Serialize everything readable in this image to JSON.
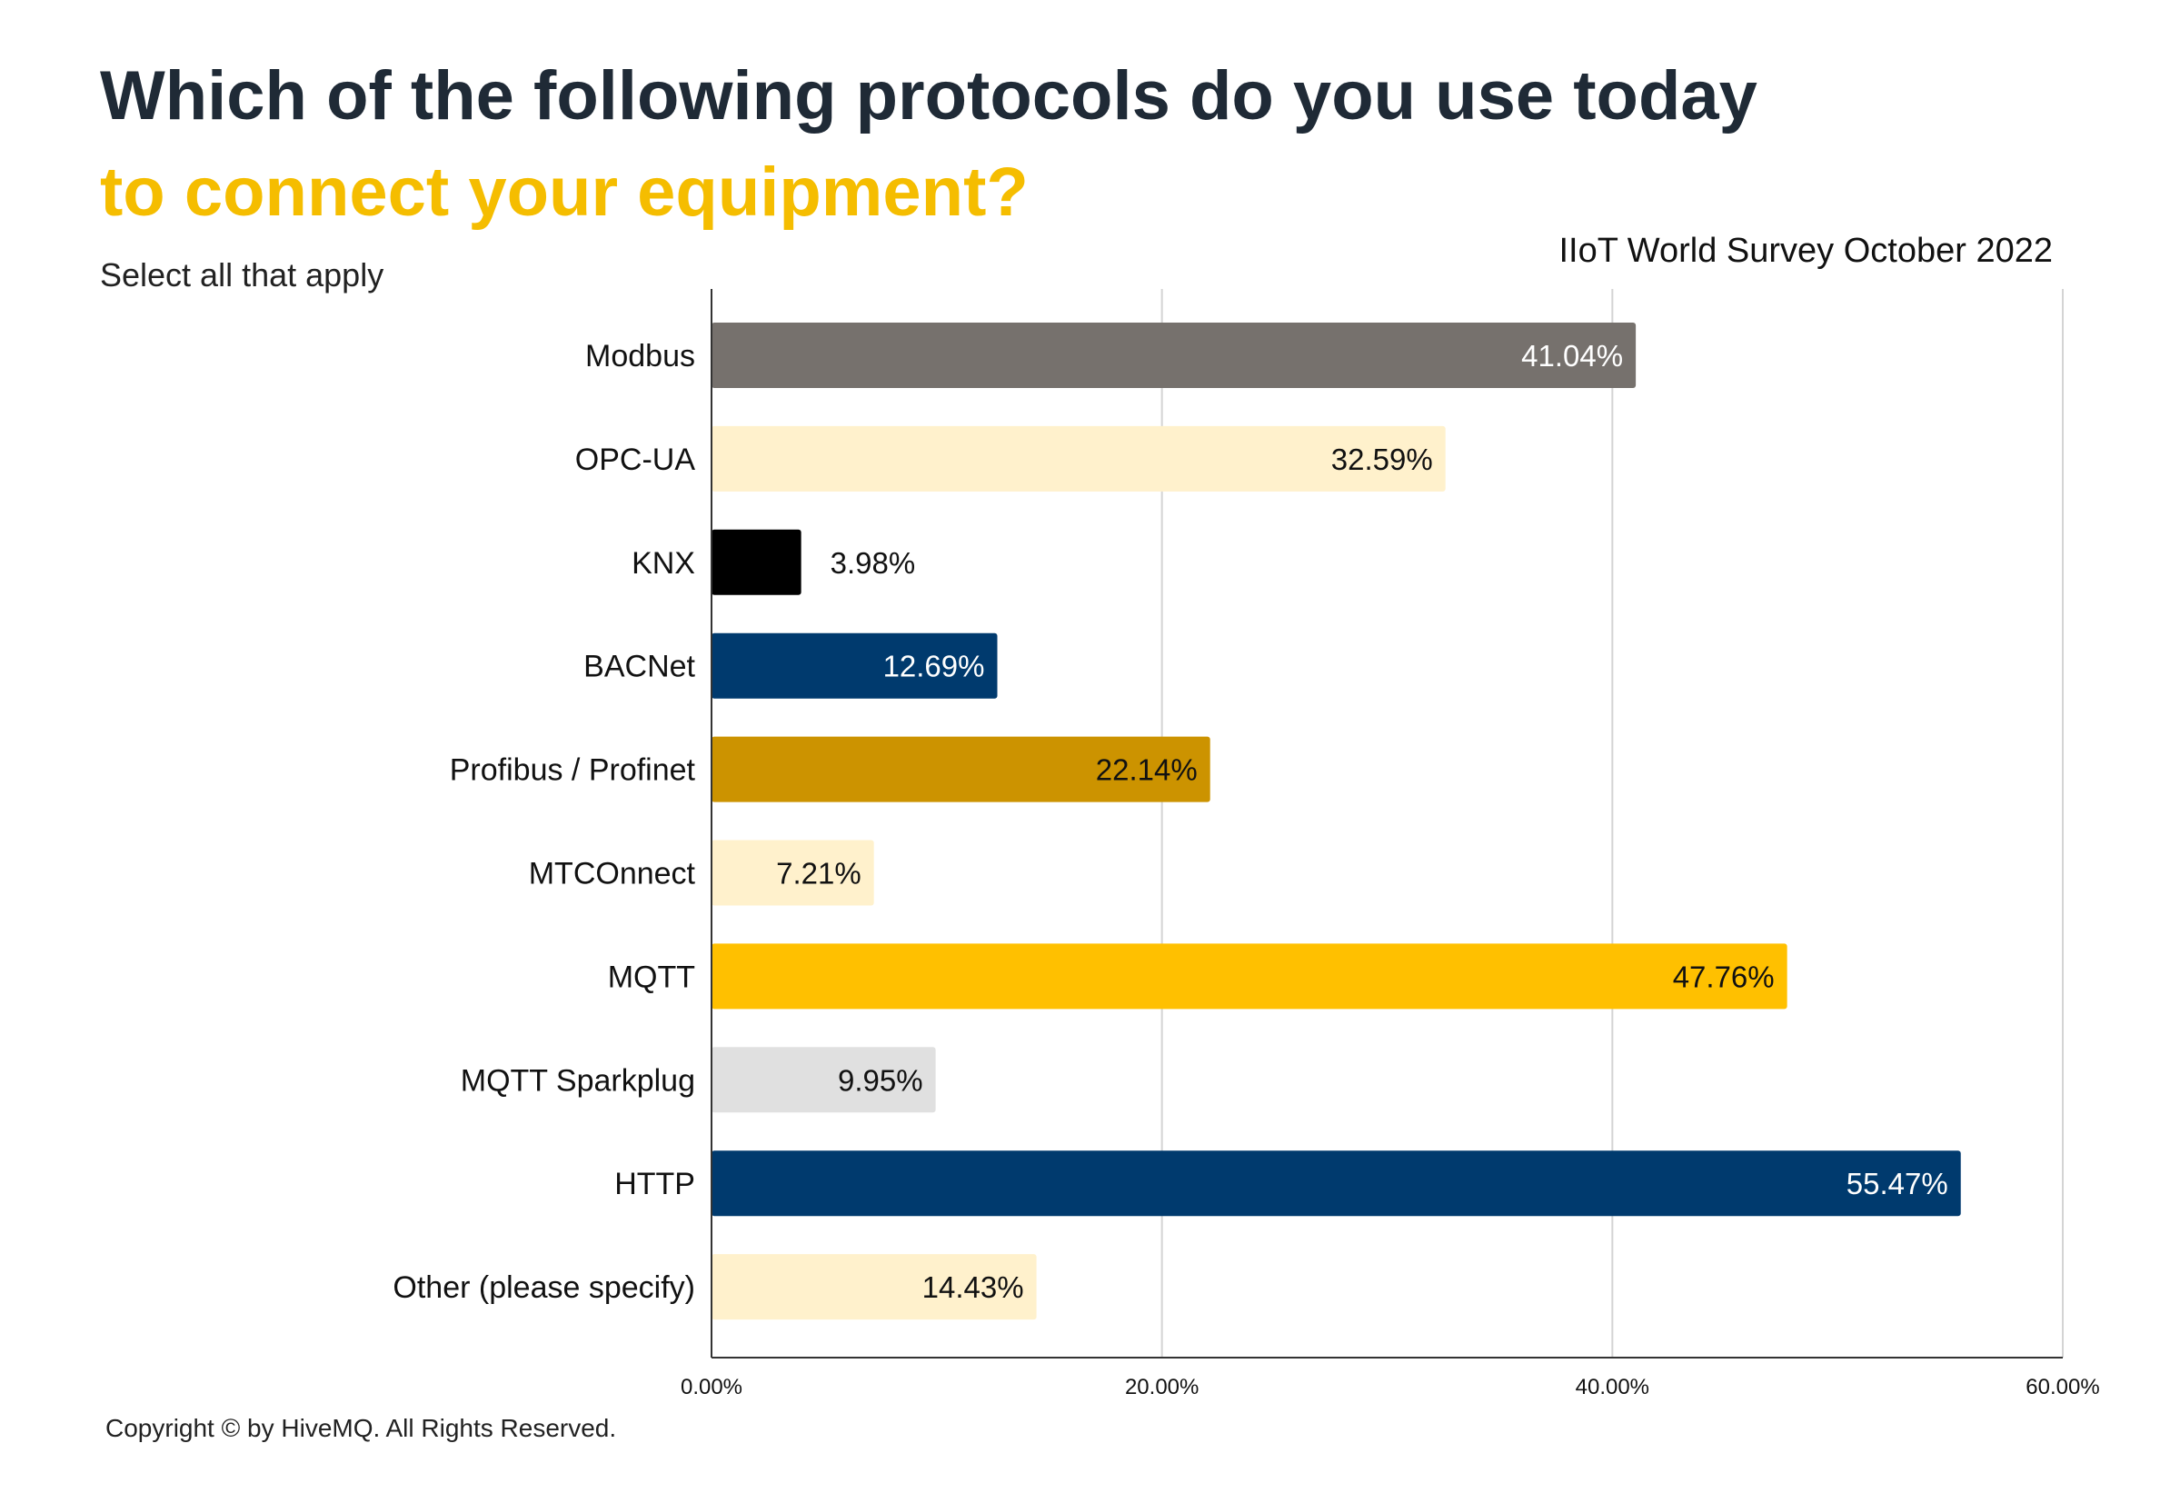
{
  "header": {
    "title_line1": "Which of the following protocols do you use today",
    "title_line2": "to connect your equipment?",
    "subtitle": "Select all that apply",
    "source": "IIoT World Survey October 2022"
  },
  "footer": {
    "copyright": "Copyright © by HiveMQ. All Rights Reserved."
  },
  "colors": {
    "title_dark": "#1f2a36",
    "title_accent": "#f5bd00",
    "gridline": "#d4d4d4",
    "axis": "#333333"
  },
  "chart_data": {
    "type": "bar",
    "orientation": "horizontal",
    "categories": [
      "Modbus",
      "OPC-UA",
      "KNX",
      "BACNet",
      "Profibus / Profinet",
      "MTCOnnect",
      "MQTT",
      "MQTT Sparkplug",
      "HTTP",
      "Other (please specify)"
    ],
    "values": [
      41.04,
      32.59,
      3.98,
      12.69,
      22.14,
      7.21,
      47.76,
      9.95,
      55.47,
      14.43
    ],
    "value_labels": [
      "41.04%",
      "32.59%",
      "3.98%",
      "12.69%",
      "22.14%",
      "7.21%",
      "47.76%",
      "9.95%",
      "55.47%",
      "14.43%"
    ],
    "bar_colors": [
      "#76716d",
      "#fff1cc",
      "#000000",
      "#003a6e",
      "#cc9300",
      "#fff1cc",
      "#ffc000",
      "#e0e0e0",
      "#003a6e",
      "#fff1cc"
    ],
    "label_colors": [
      "#ffffff",
      "#111111",
      "#111111",
      "#ffffff",
      "#111111",
      "#111111",
      "#111111",
      "#111111",
      "#ffffff",
      "#111111"
    ],
    "xlim": [
      0,
      60
    ],
    "xticks": [
      0,
      20,
      40,
      60
    ],
    "xtick_labels": [
      "0.00%",
      "20.00%",
      "40.00%",
      "60.00%"
    ],
    "grid": true,
    "legend": "none"
  }
}
